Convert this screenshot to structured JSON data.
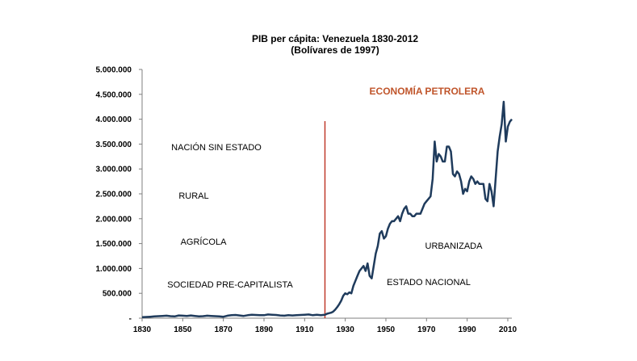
{
  "colors": {
    "series": "#1f3b5c",
    "marker": "#c0392b",
    "era": "#c0552b",
    "axis": "#7f7f7f"
  },
  "chart_data": {
    "type": "line",
    "title": "PIB per cápita: Venezuela 1830-2012",
    "subtitle": "(Bolívares de 1997)",
    "xlim": [
      1830,
      2012
    ],
    "ylim": [
      0,
      5000000
    ],
    "x_ticks": [
      "1830",
      "1850",
      "1870",
      "1890",
      "1910",
      "1930",
      "1950",
      "1970",
      "1990",
      "2010"
    ],
    "y_ticks": [
      "-",
      "500.000",
      "1.000.000",
      "1.500.000",
      "2.000.000",
      "2.500.000",
      "3.000.000",
      "3.500.000",
      "4.000.000",
      "4.500.000",
      "5.000.000"
    ],
    "grid": false,
    "legend": "none",
    "series": [
      {
        "x": [
          1830,
          1832,
          1834,
          1836,
          1838,
          1840,
          1842,
          1844,
          1846,
          1848,
          1850,
          1852,
          1854,
          1856,
          1858,
          1860,
          1862,
          1864,
          1866,
          1868,
          1870,
          1872,
          1874,
          1876,
          1878,
          1880,
          1882,
          1884,
          1886,
          1888,
          1890,
          1892,
          1894,
          1896,
          1898,
          1900,
          1902,
          1904,
          1906,
          1908,
          1910,
          1912,
          1914,
          1916,
          1918,
          1920,
          1921,
          1922,
          1923,
          1924,
          1925,
          1926,
          1927,
          1928,
          1929,
          1930,
          1931,
          1932,
          1933,
          1934,
          1935,
          1936,
          1937,
          1938,
          1939,
          1940,
          1941,
          1942,
          1943,
          1944,
          1945,
          1946,
          1947,
          1948,
          1949,
          1950,
          1951,
          1952,
          1953,
          1954,
          1955,
          1956,
          1957,
          1958,
          1959,
          1960,
          1961,
          1962,
          1963,
          1964,
          1965,
          1966,
          1967,
          1968,
          1969,
          1970,
          1971,
          1972,
          1973,
          1974,
          1975,
          1976,
          1977,
          1978,
          1979,
          1980,
          1981,
          1982,
          1983,
          1984,
          1985,
          1986,
          1987,
          1988,
          1989,
          1990,
          1991,
          1992,
          1993,
          1994,
          1995,
          1996,
          1997,
          1998,
          1999,
          2000,
          2001,
          2002,
          2003,
          2004,
          2005,
          2006,
          2007,
          2008,
          2009,
          2010,
          2011,
          2012
        ],
        "values": [
          20000,
          25000,
          30000,
          35000,
          40000,
          45000,
          50000,
          40000,
          35000,
          55000,
          50000,
          45000,
          55000,
          45000,
          35000,
          40000,
          50000,
          45000,
          40000,
          35000,
          30000,
          50000,
          60000,
          65000,
          55000,
          45000,
          60000,
          70000,
          65000,
          60000,
          60000,
          75000,
          70000,
          65000,
          55000,
          50000,
          60000,
          55000,
          60000,
          65000,
          70000,
          75000,
          60000,
          70000,
          60000,
          70000,
          90000,
          100000,
          110000,
          130000,
          170000,
          220000,
          280000,
          350000,
          450000,
          500000,
          480000,
          520000,
          500000,
          650000,
          750000,
          850000,
          950000,
          1000000,
          1050000,
          950000,
          1100000,
          850000,
          800000,
          1050000,
          1300000,
          1450000,
          1700000,
          1750000,
          1600000,
          1650000,
          1800000,
          1900000,
          1950000,
          1950000,
          2000000,
          2050000,
          1950000,
          2100000,
          2200000,
          2250000,
          2100000,
          2100000,
          2050000,
          2050000,
          2100000,
          2100000,
          2100000,
          2200000,
          2300000,
          2350000,
          2400000,
          2450000,
          2800000,
          3550000,
          3150000,
          3300000,
          3250000,
          3150000,
          3150000,
          3450000,
          3450000,
          3350000,
          2900000,
          2850000,
          2950000,
          2900000,
          2750000,
          2500000,
          2600000,
          2550000,
          2750000,
          2850000,
          2800000,
          2700000,
          2750000,
          2700000,
          2700000,
          2700000,
          2400000,
          2350000,
          2700000,
          2550000,
          2250000,
          2800000,
          3350000,
          3650000,
          3900000,
          4350000,
          3550000,
          3850000,
          3950000,
          4000000
        ]
      }
    ],
    "marker_year": 1920,
    "annotations": [
      "ECONOMÍA PETROLERA",
      "NACIÓN SIN ESTADO",
      "RURAL",
      "AGRÍCOLA",
      "SOCIEDAD PRE-CAPITALISTA",
      "URBANIZADA",
      "ESTADO NACIONAL"
    ]
  }
}
